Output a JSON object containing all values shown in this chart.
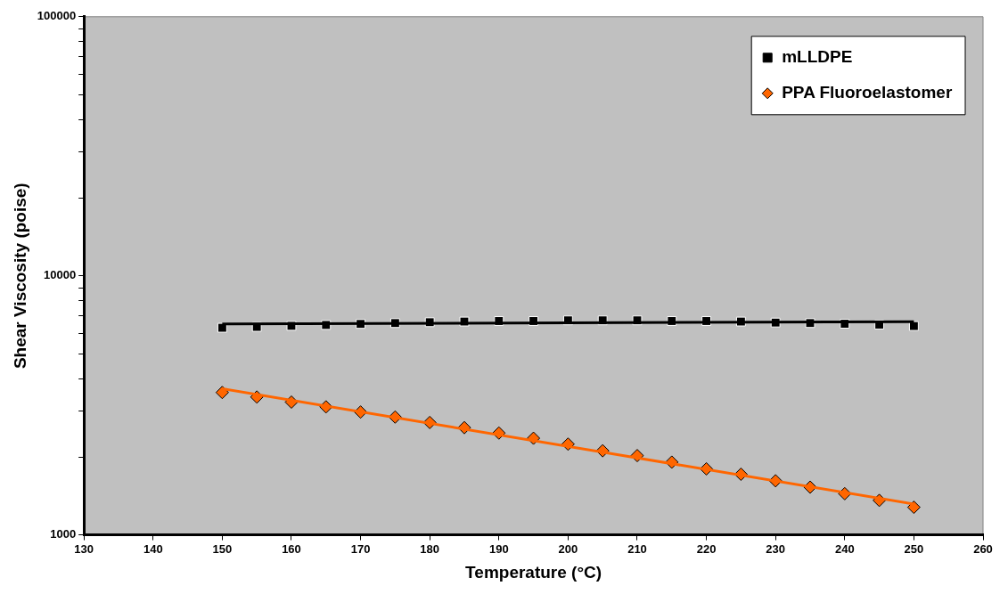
{
  "chart_data": {
    "type": "scatter",
    "xlabel": "Temperature (°C)",
    "ylabel": "Shear Viscosity (poise)",
    "log": "y",
    "grid": false,
    "legend": "top right",
    "xlim": [
      130,
      260
    ],
    "xticks": [
      130,
      140,
      150,
      160,
      170,
      180,
      190,
      200,
      210,
      220,
      230,
      240,
      250,
      260
    ],
    "ylim": [
      1000,
      100000
    ],
    "yticks": [
      1000,
      {
        "value": 2000,
        "label": null
      },
      {
        "value": 3000,
        "label": null
      },
      {
        "value": 4000,
        "label": null
      },
      {
        "value": 5000,
        "label": null
      },
      {
        "value": 6000,
        "label": null
      },
      {
        "value": 7000,
        "label": null
      },
      {
        "value": 8000,
        "label": null
      },
      {
        "value": 9000,
        "label": null
      },
      10000,
      {
        "value": 20000,
        "label": null
      },
      {
        "value": 30000,
        "label": null
      },
      {
        "value": 40000,
        "label": null
      },
      {
        "value": 50000,
        "label": null
      },
      {
        "value": 60000,
        "label": null
      },
      {
        "value": 70000,
        "label": null
      },
      {
        "value": 80000,
        "label": null
      },
      {
        "value": 90000,
        "label": null
      },
      100000
    ],
    "x": [
      150,
      155,
      160,
      165,
      170,
      175,
      180,
      185,
      190,
      195,
      200,
      205,
      210,
      215,
      220,
      225,
      230,
      235,
      240,
      245,
      250
    ],
    "series": [
      {
        "name": "mLLDPE",
        "color": "#000000",
        "marker": "square",
        "values": [
          6300,
          6350,
          6410,
          6460,
          6520,
          6570,
          6620,
          6660,
          6690,
          6690,
          6730,
          6730,
          6730,
          6690,
          6690,
          6660,
          6600,
          6570,
          6530,
          6480,
          6400
        ]
      },
      {
        "name": "PPA Fluoroelastomer",
        "color": "#ff6600",
        "marker": "diamond",
        "values": [
          3545,
          3405,
          3255,
          3120,
          2980,
          2850,
          2715,
          2594,
          2472,
          2361,
          2240,
          2112,
          2023,
          1909,
          1798,
          1714,
          1617,
          1528,
          1442,
          1359,
          1278
        ]
      },
      {
        "type": "line",
        "color": "#000000",
        "marker": "none",
        "values": [
          6515,
          null,
          null,
          null,
          null,
          null,
          null,
          null,
          null,
          null,
          null,
          null,
          null,
          null,
          null,
          null,
          null,
          null,
          null,
          null,
          6655
        ]
      },
      {
        "type": "line",
        "color": "#ff6600",
        "marker": "none",
        "values": [
          3665,
          null,
          null,
          null,
          null,
          null,
          null,
          null,
          null,
          null,
          null,
          null,
          null,
          null,
          null,
          null,
          null,
          null,
          null,
          null,
          1315
        ]
      }
    ]
  }
}
